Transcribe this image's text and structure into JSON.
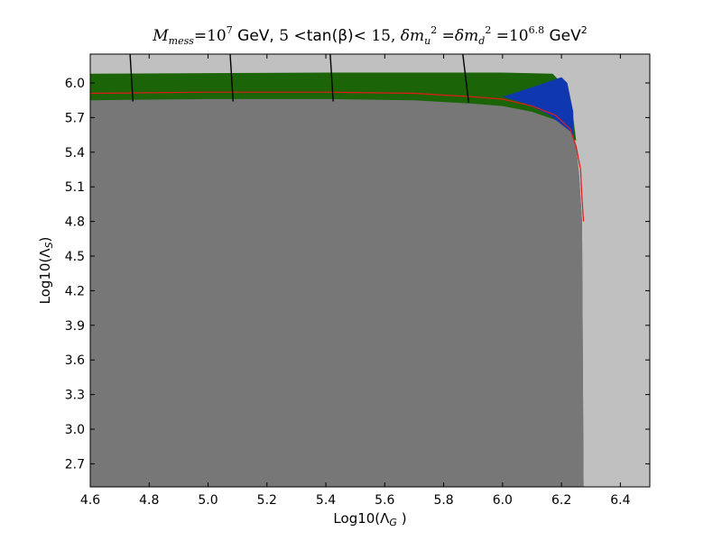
{
  "chart_data": {
    "type": "area",
    "title": "M_mess=10^7 GeV, 5<tan(β)<15, δm_u^2=δm_d^2=10^6.8 GeV^2",
    "title_parts": {
      "mass_sym": "M",
      "mass_sub": "mess",
      "mass_eq": "=10",
      "mass_exp": "7",
      "gev1": " GeV, ",
      "tanb_lo": "5 <",
      "tanb": "tan(β)",
      "tanb_hi": "< 15, ",
      "dmu": "δm",
      "dmu_sub": "u",
      "dmu_sup": "2",
      "eq1": " =δm",
      "dmd_sub": "d",
      "dmd_sup": "2",
      "eq2": " =10",
      "pow_exp": "6.8",
      "gev2": " GeV",
      "gev2_exp": "2"
    },
    "xlabel": {
      "prefix": "Log10(Λ",
      "sub": "G",
      "suffix": " )"
    },
    "ylabel": {
      "prefix": "Log10(Λ",
      "sub": "S",
      "suffix": ")"
    },
    "xlim": [
      4.6,
      6.5
    ],
    "ylim": [
      2.5,
      6.25
    ],
    "xticks": [
      "4.6",
      "4.8",
      "5.0",
      "5.2",
      "5.4",
      "5.6",
      "5.8",
      "6.0",
      "6.2",
      "6.4"
    ],
    "yticks": [
      "2.7",
      "3.0",
      "3.3",
      "3.6",
      "3.9",
      "4.2",
      "4.5",
      "4.8",
      "5.1",
      "5.4",
      "5.7",
      "6.0"
    ],
    "grid": false,
    "colors": {
      "background_region": "#c0c0c0",
      "excluded_region": "#777777",
      "green_region": "#1b6508",
      "blue_region": "#0f38b0",
      "red_contour": "#e11a1a",
      "black_contours": "#000000"
    },
    "regions": {
      "gray_boundary": [
        [
          4.6,
          5.85
        ],
        [
          5.0,
          5.86
        ],
        [
          5.4,
          5.86
        ],
        [
          5.7,
          5.85
        ],
        [
          5.9,
          5.82
        ],
        [
          6.0,
          5.8
        ],
        [
          6.1,
          5.75
        ],
        [
          6.18,
          5.68
        ],
        [
          6.23,
          5.58
        ],
        [
          6.25,
          5.45
        ],
        [
          6.26,
          5.2
        ],
        [
          6.27,
          4.8
        ],
        [
          6.275,
          2.5
        ]
      ],
      "green_top": [
        [
          4.6,
          6.08
        ],
        [
          5.4,
          6.09
        ],
        [
          6.0,
          6.09
        ],
        [
          6.17,
          6.08
        ]
      ],
      "green_right": [
        [
          6.17,
          6.08
        ],
        [
          6.22,
          5.95
        ],
        [
          6.24,
          5.7
        ],
        [
          6.25,
          5.5
        ]
      ],
      "blue_region": [
        [
          6.0,
          5.88
        ],
        [
          6.12,
          5.98
        ],
        [
          6.2,
          6.05
        ],
        [
          6.22,
          6.0
        ],
        [
          6.24,
          5.75
        ],
        [
          6.24,
          5.55
        ],
        [
          6.16,
          5.72
        ],
        [
          6.08,
          5.82
        ]
      ]
    },
    "red_contour": [
      [
        4.6,
        5.91
      ],
      [
        5.0,
        5.92
      ],
      [
        5.4,
        5.92
      ],
      [
        5.7,
        5.91
      ],
      [
        5.9,
        5.88
      ],
      [
        6.0,
        5.86
      ],
      [
        6.1,
        5.8
      ],
      [
        6.18,
        5.72
      ],
      [
        6.23,
        5.6
      ],
      [
        6.25,
        5.45
      ],
      [
        6.265,
        5.25
      ],
      [
        6.27,
        5.0
      ],
      [
        6.275,
        4.8
      ]
    ],
    "black_contours": [
      [
        [
          4.735,
          6.25
        ],
        [
          4.745,
          5.84
        ]
      ],
      [
        [
          5.075,
          6.25
        ],
        [
          5.085,
          5.84
        ]
      ],
      [
        [
          5.415,
          6.25
        ],
        [
          5.425,
          5.84
        ]
      ],
      [
        [
          5.865,
          6.25
        ],
        [
          5.885,
          5.83
        ]
      ]
    ]
  }
}
